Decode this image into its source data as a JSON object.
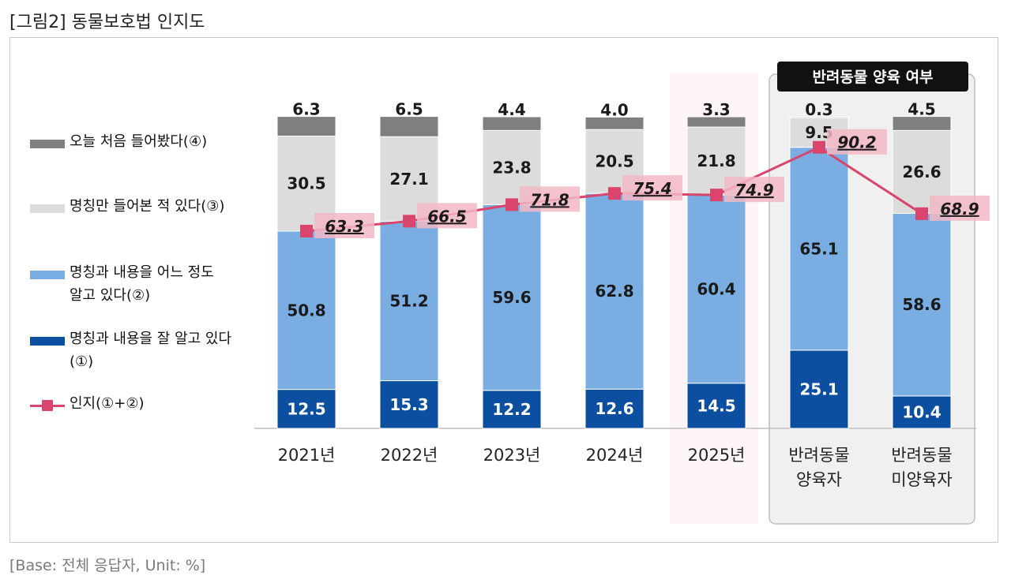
{
  "figure_title": "[그림2] 동물보호법 인지도",
  "base_note": "[Base: 전체 응답자, Unit: %]",
  "group_header": "반려동물 양육 여부",
  "legend": [
    {
      "label": "오늘 처음 들어봤다(④)",
      "color": "#7f7f7f"
    },
    {
      "label": "명칭만 들어본 적 있다(③)",
      "color": "#dcdcdc"
    },
    {
      "label": "명칭과 내용을 어느 정도 알고 있다(②)",
      "color": "#7aaee2"
    },
    {
      "label": "명칭과 내용을 잘 알고 있다(①)",
      "color": "#0c4ea0"
    },
    {
      "label": "인지(①+②)",
      "color": "#d9456c"
    }
  ],
  "chart_data": {
    "type": "bar",
    "stacked": true,
    "categories": [
      "2021년",
      "2022년",
      "2023년",
      "2024년",
      "2025년",
      "반려동물\n양육자",
      "반려동물\n미양육자"
    ],
    "series": [
      {
        "name": "명칭과 내용을 잘 알고 있다(①)",
        "values": [
          12.5,
          15.3,
          12.2,
          12.6,
          14.5,
          25.1,
          10.4
        ],
        "color": "#0c4ea0"
      },
      {
        "name": "명칭과 내용을 어느 정도 알고 있다(②)",
        "values": [
          50.8,
          51.2,
          59.6,
          62.8,
          60.4,
          65.1,
          58.6
        ],
        "color": "#7aaee2"
      },
      {
        "name": "명칭만 들어본 적 있다(③)",
        "values": [
          30.5,
          27.1,
          23.8,
          20.5,
          21.8,
          9.5,
          26.6
        ],
        "color": "#dcdcdc"
      },
      {
        "name": "오늘 처음 들어봤다(④)",
        "values": [
          6.3,
          6.5,
          4.4,
          4.0,
          3.3,
          0.3,
          4.5
        ],
        "color": "#7f7f7f"
      }
    ],
    "line": {
      "name": "인지(①+②)",
      "values": [
        63.3,
        66.5,
        71.8,
        75.4,
        74.9,
        90.2,
        68.9
      ],
      "labels": [
        "63.3",
        "66.5",
        "71.8",
        "75.4",
        "74.9",
        "90.2",
        "68.9"
      ],
      "color": "#d9456c"
    },
    "highlight_category": "2025년",
    "ylim": [
      0,
      100
    ],
    "unit": "%"
  }
}
